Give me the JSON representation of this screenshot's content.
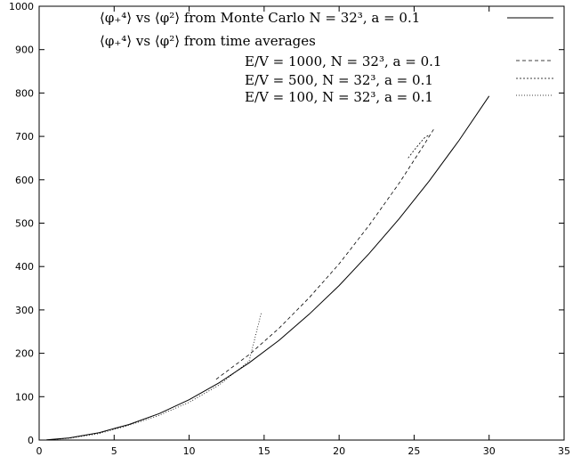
{
  "chart_data": {
    "type": "line",
    "title": "",
    "xlabel": "",
    "ylabel": "",
    "xlim": [
      0,
      35
    ],
    "ylim": [
      0,
      1000
    ],
    "x_ticks": [
      0,
      5,
      10,
      15,
      20,
      25,
      30,
      35
    ],
    "y_ticks": [
      0,
      100,
      200,
      300,
      400,
      500,
      600,
      700,
      800,
      900,
      1000
    ],
    "grid": false,
    "legend_position": "top",
    "legend": {
      "line1": "⟨φ₊⁴⟩ vs ⟨φ²⟩ from Monte Carlo N = 32³,   a = 0.1",
      "line2": "⟨φ₊⁴⟩ vs ⟨φ²⟩ from time averages",
      "line3": "E/V = 1000, N = 32³,       a = 0.1",
      "line4": "E/V = 500,  N = 32³,       a = 0.1",
      "line5": "E/V = 100,  N = 32³,       a = 0.1"
    },
    "series": [
      {
        "name": "⟨φ₊⁴⟩ vs ⟨φ²⟩ from Monte Carlo N = 32³, a = 0.1",
        "style": "solid",
        "x": [
          0.5,
          2,
          4,
          6,
          8,
          10,
          12,
          14,
          16,
          18,
          20,
          22,
          24,
          26,
          28,
          30
        ],
        "y": [
          0.5,
          5,
          17,
          36,
          61,
          93,
          132,
          178,
          230,
          290,
          356,
          430,
          510,
          597,
          691,
          793
        ]
      },
      {
        "name": "E/V = 1000, N = 32³, a = 0.1",
        "style": "dashed",
        "x": [
          11.8,
          14,
          16,
          18,
          20,
          22,
          24,
          25.5,
          26.3
        ],
        "y": [
          140,
          197,
          258,
          328,
          406,
          495,
          592,
          672,
          716
        ]
      },
      {
        "name": "E/V = 500, N = 32³, a = 0.1",
        "style": "short-dashed",
        "x": [
          24.6,
          25,
          25.4,
          25.7,
          26.0
        ],
        "y": [
          650,
          668,
          685,
          697,
          703
        ]
      },
      {
        "name": "E/V = 100, N = 32³, a = 0.1",
        "style": "dotted",
        "x": [
          0.5,
          2,
          4,
          6,
          8,
          10,
          12,
          14,
          14.8
        ],
        "y": [
          0.5,
          4,
          15,
          34,
          57,
          87,
          127,
          182,
          292
        ]
      }
    ]
  }
}
